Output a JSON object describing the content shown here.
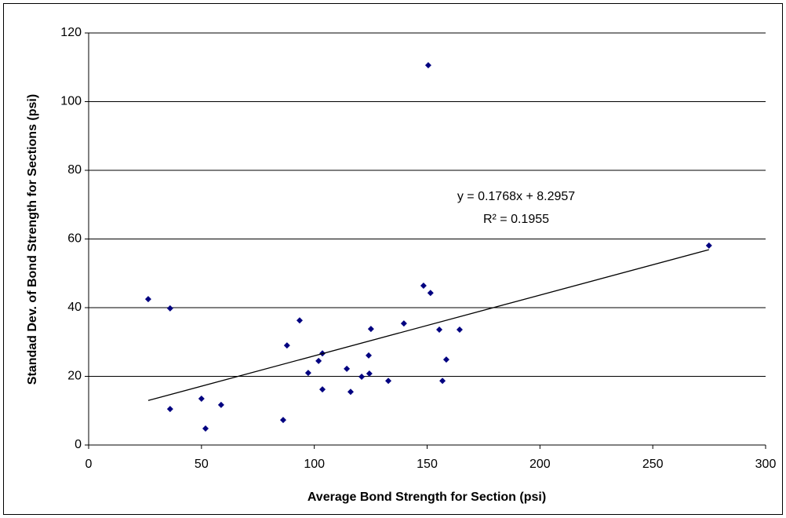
{
  "chart_data": {
    "type": "scatter",
    "x_label": "Average Bond Strength for Section (psi)",
    "y_label": "Standad Dev. of Bond Strength for Sections (psi)",
    "x": [
      26.4,
      36.1,
      36.1,
      50,
      51.8,
      58.7,
      86.2,
      87.9,
      93.5,
      97.3,
      101.9,
      103.6,
      103.6,
      114.4,
      116.1,
      121,
      124.1,
      124.4,
      125.1,
      132.8,
      139.7,
      148.4,
      150.5,
      151.5,
      155.4,
      156.8,
      158.5,
      164.4,
      274.9
    ],
    "values": [
      42.5,
      39.8,
      10.5,
      13.5,
      4.8,
      11.7,
      7.3,
      29,
      36.3,
      21,
      24.5,
      26.7,
      16.2,
      22.2,
      15.5,
      19.9,
      26.1,
      20.8,
      33.8,
      18.7,
      35.4,
      46.4,
      110.6,
      44.3,
      33.6,
      18.7,
      24.9,
      33.6,
      58.1
    ],
    "color": "#000080",
    "trendline": {
      "slope": 0.1768,
      "intercept": 8.2957,
      "equation": "y = 0.1768x + 8.2957",
      "r_squared": 0.1955,
      "r_squared_label": "R² = 0.1955",
      "color": "#000000"
    },
    "xlim": [
      0,
      300
    ],
    "xticks": [
      0,
      50,
      100,
      150,
      200,
      250,
      300
    ],
    "ylim": [
      0,
      120
    ],
    "yticks": [
      0,
      20,
      40,
      60,
      80,
      100,
      120
    ],
    "grid": true
  }
}
